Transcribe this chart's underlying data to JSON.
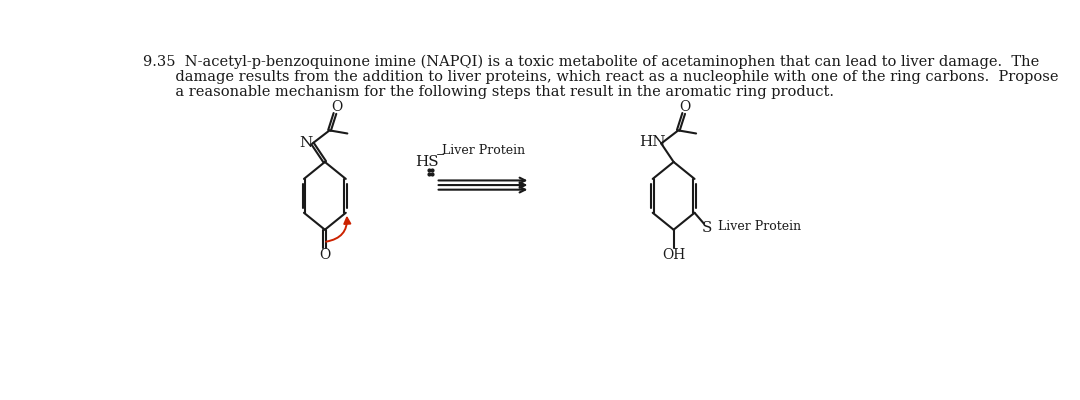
{
  "bg_color": "#ffffff",
  "line_color": "#1a1a1a",
  "red_arrow_color": "#cc2200",
  "text_color": "#1a1a1a",
  "font_size_title": 10.5,
  "font_size_label": 10,
  "title_lines": [
    "9.35  N-acetyl-p-benzoquinone imine (NAPQI) is a toxic metabolite of acetaminophen that can lead to liver damage.  The",
    "       damage results from the addition to liver proteins, which react as a nucleophile with one of the ring carbons.  Propose",
    "       a reasonable mechanism for the following steps that result in the aromatic ring product."
  ]
}
